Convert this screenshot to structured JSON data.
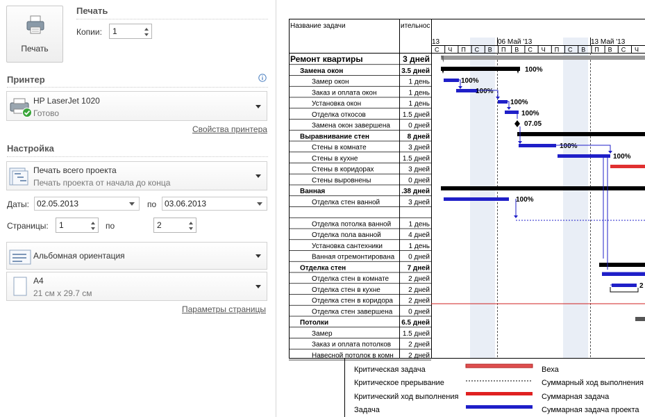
{
  "print": {
    "button_label": "Печать",
    "section_title": "Печать",
    "copies_label": "Копии:",
    "copies_value": "1"
  },
  "printer": {
    "section_title": "Принтер",
    "name": "HP LaserJet 1020",
    "status": "Готово",
    "properties_link": "Свойства принтера"
  },
  "settings": {
    "section_title": "Настройка",
    "scope_title": "Печать всего проекта",
    "scope_sub": "Печать проекта от начала до конца",
    "dates_label": "Даты:",
    "date_from": "02.05.2013",
    "to_label": "по",
    "date_to": "03.06.2013",
    "pages_label": "Страницы:",
    "page_from": "1",
    "pages_to_label": "по",
    "page_to": "2",
    "orientation": "Альбомная ориентация",
    "paper_title": "A4",
    "paper_sub": "21 см x 29.7 см",
    "page_setup_link": "Параметры страницы"
  },
  "preview": {
    "col_task": "Название задачи",
    "col_duration": "ительнос",
    "timescale_top": [
      {
        "label": "13"
      },
      {
        "label": "06 Май '13"
      },
      {
        "label": "13 Май '13"
      }
    ],
    "timescale_days": [
      "С",
      "Ч",
      "П",
      "С",
      "В",
      "П",
      "В",
      "С",
      "Ч",
      "П",
      "С",
      "В",
      "П",
      "В",
      "С",
      "Ч"
    ],
    "rows": [
      {
        "name": "Ремонт квартиры",
        "dur": "3 дней",
        "level": 0
      },
      {
        "name": "Замена окон",
        "dur": "3.5 дней",
        "level": 1
      },
      {
        "name": "Замер окон",
        "dur": "1 день",
        "level": 2
      },
      {
        "name": "Заказ и оплата окон",
        "dur": "1 день",
        "level": 2
      },
      {
        "name": "Установка окон",
        "dur": "1 день",
        "level": 2
      },
      {
        "name": "Отделка откосов",
        "dur": "1.5 дней",
        "level": 2
      },
      {
        "name": "Замена окон завершена",
        "dur": "0 дней",
        "level": 2
      },
      {
        "name": "Выравнивание стен",
        "dur": "8 дней",
        "level": 1
      },
      {
        "name": "Стены в комнате",
        "dur": "3 дней",
        "level": 2
      },
      {
        "name": "Стены в кухне",
        "dur": "1.5 дней",
        "level": 2
      },
      {
        "name": "Стены в коридорах",
        "dur": "3 дней",
        "level": 2
      },
      {
        "name": "Стены выровнены",
        "dur": "0 дней",
        "level": 2
      },
      {
        "name": "Ванная",
        "dur": ".38 дней",
        "level": 1
      },
      {
        "name": "Отделка стен ванной",
        "dur": "3 дней",
        "level": 2
      },
      {
        "name": "",
        "dur": "",
        "level": 2
      },
      {
        "name": "Отделка потолка ванной",
        "dur": "1 день",
        "level": 2
      },
      {
        "name": "Отделка пола ванной",
        "dur": "4 дней",
        "level": 2
      },
      {
        "name": "Установка сантехники",
        "dur": "1 день",
        "level": 2
      },
      {
        "name": "Ванная отремонтирована",
        "dur": "0 дней",
        "level": 2
      },
      {
        "name": "Отделка стен",
        "dur": "7 дней",
        "level": 1
      },
      {
        "name": "Отделка стен в комнате",
        "dur": "2 дней",
        "level": 2
      },
      {
        "name": "Отделка стен в кухне",
        "dur": "2 дней",
        "level": 2
      },
      {
        "name": "Отделка стен в коридора",
        "dur": "2 дней",
        "level": 2
      },
      {
        "name": "Отделка стен завершена",
        "dur": "0 дней",
        "level": 2
      },
      {
        "name": "Потолки",
        "dur": "6.5 дней",
        "level": 1
      },
      {
        "name": "Замер",
        "dur": "1.5 дней",
        "level": 2
      },
      {
        "name": "Заказ и оплата потолков",
        "dur": "2 дней",
        "level": 2
      },
      {
        "name": "Навесной потолок в комн",
        "dur": "2 дней",
        "level": 2
      }
    ],
    "bar_labels": {
      "b1": "100%",
      "b2": "100%",
      "b3": "100%",
      "b4": "100%",
      "b5": "100%",
      "m1": "07.05",
      "b6": "100%",
      "b7": "100%",
      "b8": "100%",
      "b9": "100%",
      "b10": "2"
    },
    "legend": [
      {
        "label": "Критическая задача"
      },
      {
        "label": "Веха"
      },
      {
        "label": "Критическое прерывание"
      },
      {
        "label": "Суммарный ход выполнения"
      },
      {
        "label": "Критический ход выполнения"
      },
      {
        "label": "Суммарная задача"
      },
      {
        "label": "Задача"
      },
      {
        "label": "Суммарная задача проекта"
      }
    ]
  },
  "colors": {
    "task_blue": "#1f1fc8",
    "critical_red": "#e02020",
    "weekend_shade": "#e9eef6"
  }
}
